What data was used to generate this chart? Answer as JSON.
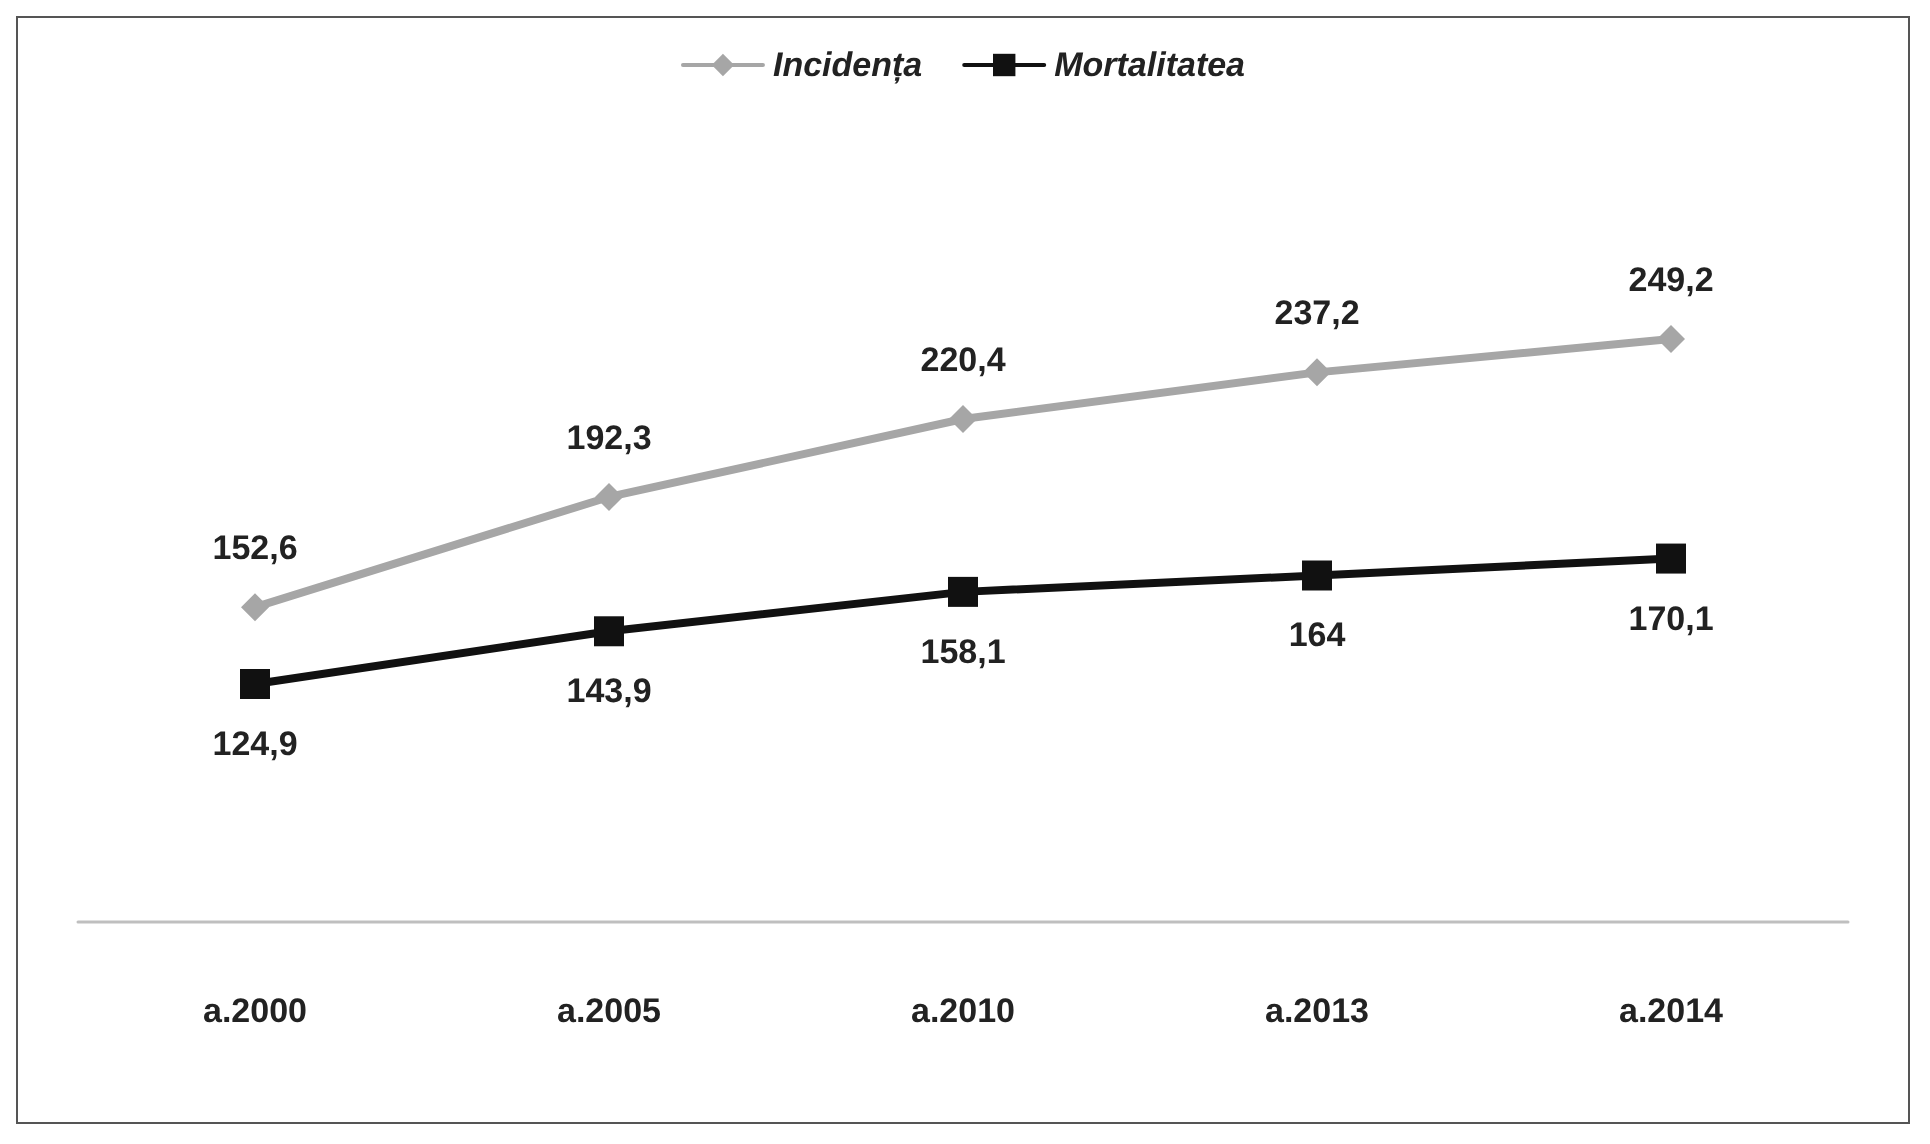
{
  "chart_data": {
    "type": "line",
    "categories": [
      "a.2000",
      "a.2005",
      "a.2010",
      "a.2013",
      "a.2014"
    ],
    "series": [
      {
        "name": "Incidența",
        "color": "#a6a6a6",
        "marker": "diamond",
        "values": [
          152.6,
          192.3,
          220.4,
          237.2,
          249.2
        ],
        "value_labels": [
          "152,6",
          "192,3",
          "220,4",
          "237,2",
          "249,2"
        ]
      },
      {
        "name": "Mortalitatea",
        "color": "#111111",
        "marker": "square",
        "values": [
          124.9,
          143.9,
          158.1,
          164,
          170.1
        ],
        "value_labels": [
          "124,9",
          "143,9",
          "158,1",
          "164",
          "170,1"
        ]
      }
    ],
    "legend": "top",
    "grid": false,
    "line_style": "solid"
  }
}
